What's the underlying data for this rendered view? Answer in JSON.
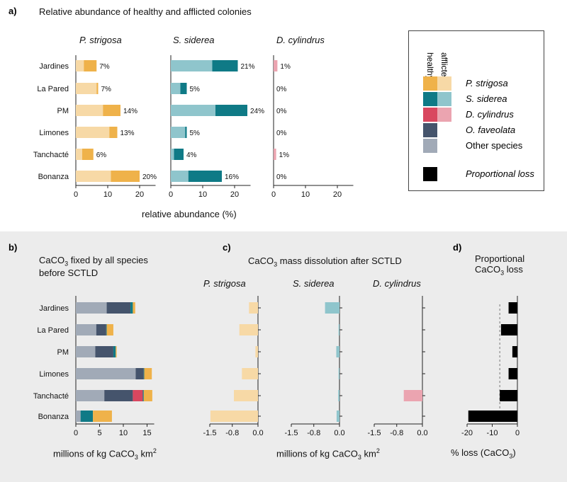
{
  "panel_a": {
    "label": "a)",
    "title": "Relative abundance of healthy and afflicted colonies",
    "xlabel": "relative abundance (%)"
  },
  "panel_b": {
    "label": "b)",
    "title_line1_pre": "CaCO",
    "title_line1_sub": "3",
    "title_line1_post": " fixed by all species",
    "title_line2": "before SCTLD",
    "xlabel_pre": "millions of kg CaCO",
    "xlabel_sub": "3",
    "xlabel_post": " km",
    "xlabel_sup": "2"
  },
  "panel_c": {
    "label": "c)",
    "title_pre": "CaCO",
    "title_sub": "3",
    "title_post": " mass dissolution after SCTLD",
    "xlabel_pre": "millions of kg CaCO",
    "xlabel_sub": "3",
    "xlabel_post": " km",
    "xlabel_sup": "2"
  },
  "panel_d": {
    "label": "d)",
    "title_line1": "Proportional",
    "title_line2_pre": "CaCO",
    "title_line2_sub": "3",
    "title_line2_post": " loss",
    "xlabel_pre": "% loss (CaCO",
    "xlabel_sub": "3",
    "xlabel_post": ")"
  },
  "legend": {
    "header_healthy": "healthy",
    "header_afflicted": "afflicted",
    "items": [
      {
        "name": "P. strigosa",
        "italic": true,
        "healthy": "#efb24a",
        "afflicted": "#f7d9a6"
      },
      {
        "name": "S. siderea",
        "italic": true,
        "healthy": "#0f7a86",
        "afflicted": "#8fc5cc"
      },
      {
        "name": "D. cylindrus",
        "italic": true,
        "healthy": "#d9475f",
        "afflicted": "#eba4b0"
      },
      {
        "name": "O. faveolata",
        "italic": true,
        "healthy": "#45546c",
        "afflicted": null
      },
      {
        "name": "Other species",
        "italic": false,
        "healthy": "#a1aab7",
        "afflicted": null
      },
      {
        "name": "Proportional loss",
        "italic": true,
        "healthy": "#000000",
        "afflicted": null
      }
    ]
  },
  "chart_data": [
    {
      "id": "a",
      "type": "bar",
      "orientation": "horizontal",
      "stacked": true,
      "title": "Relative abundance of healthy and afflicted colonies",
      "xlabel": "relative abundance (%)",
      "categories": [
        "Jardines",
        "La Pared",
        "PM",
        "Limones",
        "Tanchacté",
        "Bonanza"
      ],
      "xlim": [
        0,
        25
      ],
      "xticks": [
        0,
        10,
        20
      ],
      "facets": [
        {
          "species": "P. strigosa",
          "afflicted": [
            2.5,
            6.5,
            8.5,
            10.5,
            2.0,
            11.0
          ],
          "healthy": [
            4.0,
            0.5,
            5.5,
            2.5,
            3.5,
            9.0
          ],
          "labels": [
            "7%",
            "7%",
            "14%",
            "13%",
            "6%",
            "20%"
          ]
        },
        {
          "species": "S. siderea",
          "afflicted": [
            13.0,
            3.0,
            14.0,
            4.5,
            1.0,
            5.5
          ],
          "healthy": [
            8.0,
            2.0,
            10.0,
            0.5,
            3.0,
            10.5
          ],
          "labels": [
            "21%",
            "5%",
            "24%",
            "5%",
            "4%",
            "16%"
          ]
        },
        {
          "species": "D. cylindrus",
          "afflicted": [
            1.2,
            0,
            0,
            0,
            0.8,
            0
          ],
          "healthy": [
            0,
            0,
            0,
            0,
            0,
            0
          ],
          "labels": [
            "1%",
            "0%",
            "0%",
            "0%",
            "1%",
            "0%"
          ]
        }
      ]
    },
    {
      "id": "b",
      "type": "bar",
      "orientation": "horizontal",
      "stacked": true,
      "title": "CaCO3 fixed by all species before SCTLD",
      "xlabel": "millions of kg CaCO3 km2",
      "categories": [
        "Jardines",
        "La Pared",
        "PM",
        "Limones",
        "Tanchacté",
        "Bonanza"
      ],
      "xlim": [
        0,
        16.5
      ],
      "xticks": [
        0,
        5,
        10,
        15
      ],
      "series": [
        {
          "name": "Other species",
          "values": [
            6.5,
            4.3,
            4.1,
            12.6,
            6.0,
            1.0
          ]
        },
        {
          "name": "O. faveolata",
          "values": [
            5.0,
            2.1,
            3.8,
            1.7,
            6.0,
            0
          ]
        },
        {
          "name": "D. cylindrus",
          "values": [
            0,
            0,
            0,
            0,
            2.1,
            0
          ]
        },
        {
          "name": "S. siderea",
          "values": [
            0.5,
            0.1,
            0.5,
            0.1,
            0.2,
            2.6
          ]
        },
        {
          "name": "P. strigosa",
          "values": [
            0.5,
            1.4,
            0.2,
            1.6,
            1.8,
            4.0
          ]
        }
      ]
    },
    {
      "id": "c",
      "type": "bar",
      "orientation": "horizontal",
      "title": "CaCO3 mass dissolution after SCTLD",
      "xlabel": "millions of kg CaCO3 km2",
      "categories": [
        "Jardines",
        "La Pared",
        "PM",
        "Limones",
        "Tanchacté",
        "Bonanza"
      ],
      "xlim": [
        -1.5,
        0.0
      ],
      "xticks": [
        -1.5,
        -0.8,
        0.0
      ],
      "facets": [
        {
          "species": "P. strigosa",
          "values": [
            -0.28,
            -0.58,
            -0.08,
            -0.5,
            -0.75,
            -1.48
          ]
        },
        {
          "species": "S. siderea",
          "values": [
            -0.45,
            -0.03,
            -0.1,
            -0.03,
            -0.04,
            -0.09
          ]
        },
        {
          "species": "D. cylindrus",
          "values": [
            0,
            0,
            0,
            0,
            -0.58,
            0
          ]
        }
      ]
    },
    {
      "id": "d",
      "type": "bar",
      "orientation": "horizontal",
      "title": "Proportional CaCO3 loss",
      "xlabel": "% loss (CaCO3)",
      "categories": [
        "Jardines",
        "La Pared",
        "PM",
        "Limones",
        "Tanchacté",
        "Bonanza"
      ],
      "xlim": [
        -20,
        0
      ],
      "xticks": [
        -20,
        -10,
        0
      ],
      "values": [
        -3.5,
        -6.5,
        -2.0,
        -3.5,
        -7.0,
        -19.5
      ],
      "reference_line": -7
    }
  ]
}
